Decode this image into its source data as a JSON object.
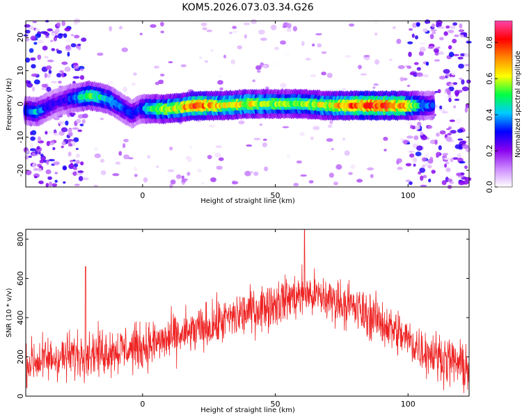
{
  "title": "KOM5.2026.073.03.34.G26",
  "colors": {
    "snr_line": "#ee2222",
    "axis": "#000000"
  },
  "chart_data": [
    {
      "type": "heatmap",
      "name": "spectrogram",
      "xlabel": "Height of straight line (km)",
      "ylabel": "Frequency (Hz)",
      "xlim": [
        -44,
        123
      ],
      "ylim": [
        -25,
        25
      ],
      "xticks": [
        0,
        50,
        100
      ],
      "yticks": [
        20,
        10,
        0,
        -10,
        -20
      ],
      "xtick_labels": [
        "0",
        "50",
        "100"
      ],
      "ytick_labels": [
        "20",
        "10",
        "0",
        "-10",
        "-20"
      ],
      "colorbar": {
        "label": "Normalized spectral amplitude",
        "range": [
          0,
          0.92
        ],
        "ticks": [
          0.0,
          0.2,
          0.4,
          0.6,
          0.8
        ],
        "tick_labels": [
          "0.0",
          "0.2",
          "0.4",
          "0.6",
          "0.8"
        ],
        "colormap": [
          "#ffffff",
          "#cc88ff",
          "#8800ee",
          "#0000ff",
          "#00ccff",
          "#00ff44",
          "#ffff00",
          "#ff8800",
          "#ff0000",
          "#ff44aa"
        ]
      },
      "ridge": {
        "x": [
          -44,
          -40,
          -36,
          -32,
          -28,
          -24,
          -20,
          -16,
          -12,
          -8,
          -4,
          -1,
          2,
          6,
          10,
          15,
          20,
          30,
          40,
          50,
          60,
          70,
          80,
          90,
          100,
          105,
          110
        ],
        "freq": [
          -2,
          -2.5,
          -1,
          0.5,
          1.5,
          2,
          2.5,
          2,
          1,
          -1,
          -3,
          -1.5,
          -1.5,
          -1.5,
          -1.5,
          -1,
          -0.5,
          -0.5,
          0,
          0,
          0,
          -0.5,
          -0.5,
          -0.5,
          -0.5,
          -0.5,
          -0.5
        ],
        "amp": [
          0.35,
          0.4,
          0.3,
          0.25,
          0.3,
          0.4,
          0.5,
          0.45,
          0.4,
          0.35,
          0.3,
          0.3,
          0.45,
          0.55,
          0.6,
          0.65,
          0.75,
          0.6,
          0.6,
          0.55,
          0.55,
          0.6,
          0.75,
          0.8,
          0.65,
          0.4,
          0.3
        ]
      }
    },
    {
      "type": "line",
      "name": "snr",
      "xlabel": "Height of straight line (km)",
      "ylabel": "SNR (10 * v/v)",
      "xlim": [
        -44,
        123
      ],
      "ylim": [
        0,
        850
      ],
      "xticks": [
        0,
        50,
        100
      ],
      "yticks": [
        0,
        200,
        400,
        600,
        800
      ],
      "xtick_labels": [
        "0",
        "50",
        "100"
      ],
      "ytick_labels": [
        "0",
        "200",
        "400",
        "600",
        "800"
      ],
      "trend": {
        "x": [
          -44,
          -30,
          -20,
          0,
          20,
          40,
          55,
          62,
          75,
          90,
          105,
          123
        ],
        "y": [
          170,
          200,
          220,
          250,
          330,
          430,
          500,
          520,
          480,
          380,
          240,
          140
        ]
      },
      "spikes": {
        "x": [
          -21.5,
          61
        ],
        "y": [
          660,
          850
        ]
      },
      "noise_amplitude": 90,
      "n_points": 1500
    }
  ]
}
